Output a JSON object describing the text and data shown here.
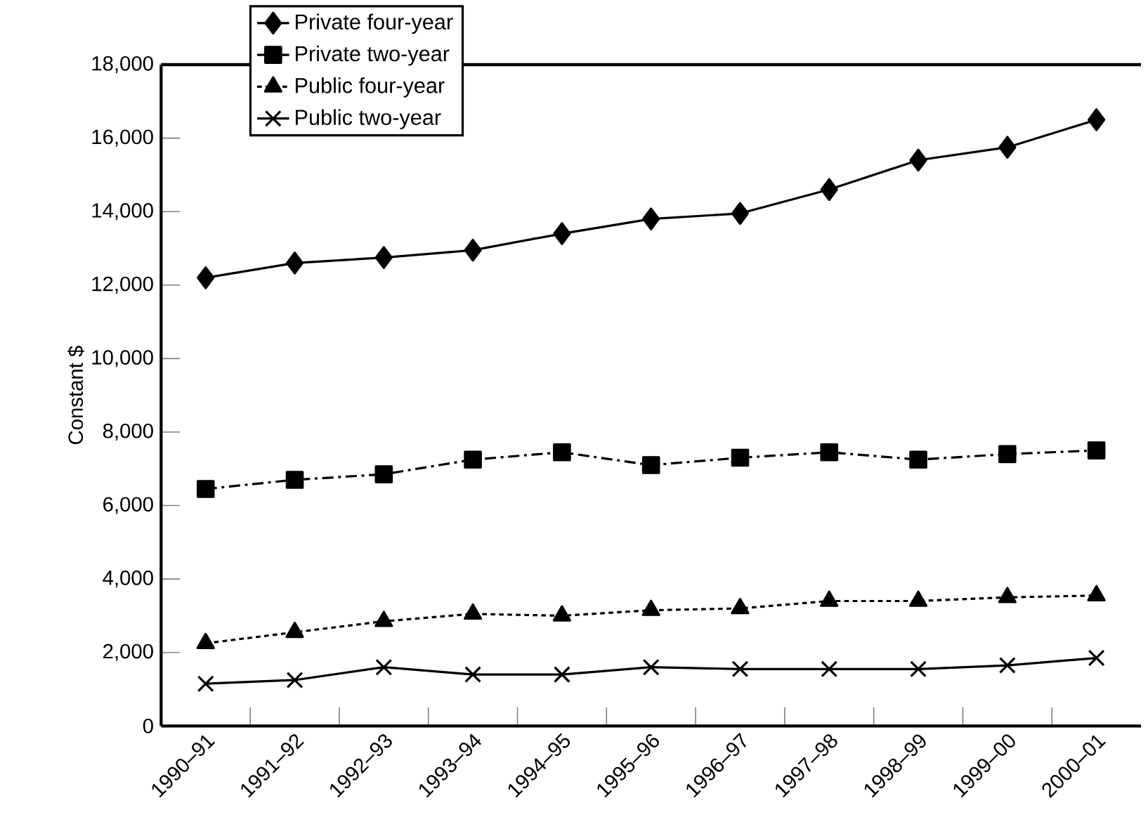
{
  "chart_data": {
    "type": "line",
    "ylabel": "Constant $",
    "categories": [
      "1990–91",
      "1991–92",
      "1992–93",
      "1993–94",
      "1994–95",
      "1995–96",
      "1996–97",
      "1997–98",
      "1998–99",
      "1999–00",
      "2000–01"
    ],
    "ylim": [
      0,
      18000
    ],
    "yticks": [
      {
        "value": 0,
        "label": "0"
      },
      {
        "value": 2000,
        "label": "2,000"
      },
      {
        "value": 4000,
        "label": "4,000"
      },
      {
        "value": 6000,
        "label": "6,000"
      },
      {
        "value": 8000,
        "label": "8,000"
      },
      {
        "value": 10000,
        "label": "10,000"
      },
      {
        "value": 12000,
        "label": "12,000"
      },
      {
        "value": 14000,
        "label": "14,000"
      },
      {
        "value": 16000,
        "label": "16,000"
      },
      {
        "value": 18000,
        "label": "18,000"
      }
    ],
    "grid": false,
    "legend": "top left",
    "series": [
      {
        "name": "Private four-year",
        "color": "#000000",
        "marker": "diamond",
        "line_style": "solid",
        "values": [
          12200,
          12600,
          12750,
          12950,
          13400,
          13800,
          13950,
          14600,
          15400,
          15750,
          16500
        ]
      },
      {
        "name": "Private two-year",
        "color": "#000000",
        "marker": "square",
        "line_style": "dashdot",
        "values": [
          6450,
          6700,
          6850,
          7250,
          7450,
          7100,
          7300,
          7450,
          7250,
          7400,
          7500
        ]
      },
      {
        "name": "Public four-year",
        "color": "#000000",
        "marker": "triangle",
        "line_style": "dotted",
        "values": [
          2250,
          2550,
          2850,
          3050,
          3000,
          3150,
          3200,
          3400,
          3400,
          3500,
          3550
        ]
      },
      {
        "name": "Public two-year",
        "color": "#000000",
        "marker": "cross",
        "line_style": "solid",
        "values": [
          1150,
          1250,
          1600,
          1400,
          1400,
          1600,
          1550,
          1550,
          1550,
          1650,
          1850
        ]
      }
    ]
  }
}
